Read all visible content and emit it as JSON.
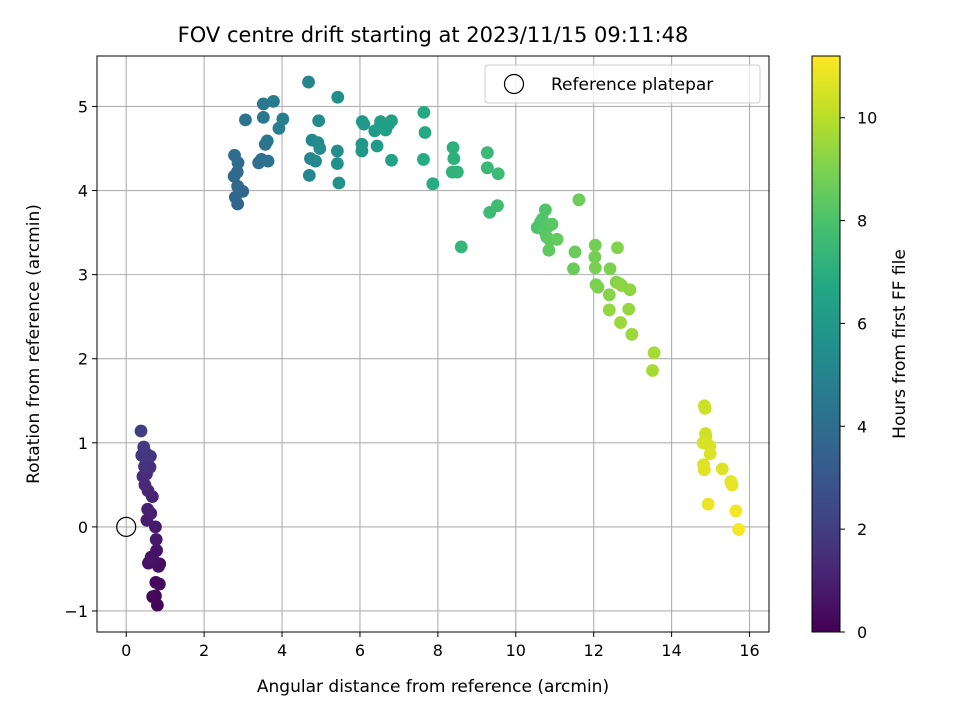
{
  "chart_data": {
    "type": "scatter",
    "title": "FOV centre drift starting at 2023/11/15 09:11:48",
    "xlabel": "Angular distance from reference (arcmin)",
    "ylabel": "Rotation from reference (arcmin)",
    "xlim": [
      -0.75,
      16.5
    ],
    "ylim": [
      -1.25,
      5.6
    ],
    "xticks": [
      0,
      2,
      4,
      6,
      8,
      10,
      12,
      14,
      16
    ],
    "yticks": [
      -1,
      0,
      1,
      2,
      3,
      4,
      5
    ],
    "xtick_labels": [
      "0",
      "2",
      "4",
      "6",
      "8",
      "10",
      "12",
      "14",
      "16"
    ],
    "ytick_labels": [
      "−1",
      "0",
      "1",
      "2",
      "3",
      "4",
      "5"
    ],
    "grid": true,
    "legend": {
      "location": "upper right",
      "entries": [
        "Reference platepar"
      ]
    },
    "reference_point": {
      "label": "Reference platepar",
      "x": 0,
      "y": 0
    },
    "colorbar": {
      "label": "Hours from first FF file",
      "colormap": "viridis",
      "range": [
        0,
        11.2
      ],
      "ticks": [
        0,
        2,
        4,
        6,
        8,
        10
      ],
      "tick_labels": [
        "0",
        "2",
        "4",
        "6",
        "8",
        "10"
      ]
    },
    "series": [
      {
        "points": [
          {
            "x": 0.8,
            "y": -0.93,
            "c": 0.1
          },
          {
            "x": 0.75,
            "y": -0.82,
            "c": 0.2
          },
          {
            "x": 0.68,
            "y": -0.83,
            "c": 0.2
          },
          {
            "x": 0.85,
            "y": -0.68,
            "c": 0.3
          },
          {
            "x": 0.76,
            "y": -0.66,
            "c": 0.3
          },
          {
            "x": 0.83,
            "y": -0.47,
            "c": 0.4
          },
          {
            "x": 0.86,
            "y": -0.44,
            "c": 0.4
          },
          {
            "x": 0.7,
            "y": -0.4,
            "c": 0.5
          },
          {
            "x": 0.57,
            "y": -0.43,
            "c": 0.5
          },
          {
            "x": 0.64,
            "y": -0.36,
            "c": 0.6
          },
          {
            "x": 0.78,
            "y": -0.28,
            "c": 0.6
          },
          {
            "x": 0.77,
            "y": -0.15,
            "c": 0.7
          },
          {
            "x": 0.75,
            "y": 0.0,
            "c": 0.8
          },
          {
            "x": 0.53,
            "y": 0.08,
            "c": 0.9
          },
          {
            "x": 0.63,
            "y": 0.16,
            "c": 1.0
          },
          {
            "x": 0.55,
            "y": 0.21,
            "c": 1.0
          },
          {
            "x": 0.67,
            "y": 0.36,
            "c": 1.1
          },
          {
            "x": 0.56,
            "y": 0.43,
            "c": 1.2
          },
          {
            "x": 0.48,
            "y": 0.5,
            "c": 1.3
          },
          {
            "x": 0.43,
            "y": 0.6,
            "c": 1.4
          },
          {
            "x": 0.52,
            "y": 0.63,
            "c": 1.4
          },
          {
            "x": 0.61,
            "y": 0.71,
            "c": 1.5
          },
          {
            "x": 0.47,
            "y": 0.72,
            "c": 1.6
          },
          {
            "x": 0.62,
            "y": 0.84,
            "c": 1.7
          },
          {
            "x": 0.4,
            "y": 0.85,
            "c": 1.8
          },
          {
            "x": 0.52,
            "y": 0.87,
            "c": 1.8
          },
          {
            "x": 0.45,
            "y": 0.95,
            "c": 1.9
          },
          {
            "x": 0.38,
            "y": 1.14,
            "c": 2.0
          },
          {
            "x": 2.86,
            "y": 3.84,
            "c": 3.6
          },
          {
            "x": 2.8,
            "y": 3.92,
            "c": 3.7
          },
          {
            "x": 2.99,
            "y": 3.99,
            "c": 3.7
          },
          {
            "x": 2.86,
            "y": 4.05,
            "c": 3.8
          },
          {
            "x": 2.77,
            "y": 4.17,
            "c": 3.8
          },
          {
            "x": 2.85,
            "y": 4.22,
            "c": 3.9
          },
          {
            "x": 2.87,
            "y": 4.33,
            "c": 3.9
          },
          {
            "x": 2.78,
            "y": 4.42,
            "c": 4.0
          },
          {
            "x": 3.4,
            "y": 4.33,
            "c": 4.1
          },
          {
            "x": 3.47,
            "y": 4.37,
            "c": 4.1
          },
          {
            "x": 3.64,
            "y": 4.35,
            "c": 4.2
          },
          {
            "x": 3.57,
            "y": 4.55,
            "c": 4.3
          },
          {
            "x": 3.62,
            "y": 4.59,
            "c": 4.3
          },
          {
            "x": 3.06,
            "y": 4.84,
            "c": 4.4
          },
          {
            "x": 3.52,
            "y": 4.87,
            "c": 4.5
          },
          {
            "x": 3.52,
            "y": 5.03,
            "c": 4.5
          },
          {
            "x": 3.78,
            "y": 5.06,
            "c": 4.6
          },
          {
            "x": 3.92,
            "y": 4.74,
            "c": 4.7
          },
          {
            "x": 4.02,
            "y": 4.85,
            "c": 4.7
          },
          {
            "x": 4.68,
            "y": 5.29,
            "c": 5.0
          },
          {
            "x": 4.7,
            "y": 4.18,
            "c": 5.1
          },
          {
            "x": 4.73,
            "y": 4.38,
            "c": 5.1
          },
          {
            "x": 4.86,
            "y": 4.35,
            "c": 5.2
          },
          {
            "x": 4.77,
            "y": 4.6,
            "c": 5.2
          },
          {
            "x": 4.94,
            "y": 4.83,
            "c": 5.3
          },
          {
            "x": 4.92,
            "y": 4.57,
            "c": 5.3
          },
          {
            "x": 4.97,
            "y": 4.5,
            "c": 5.4
          },
          {
            "x": 5.43,
            "y": 5.11,
            "c": 5.5
          },
          {
            "x": 5.42,
            "y": 4.47,
            "c": 5.5
          },
          {
            "x": 5.42,
            "y": 4.32,
            "c": 5.6
          },
          {
            "x": 5.46,
            "y": 4.09,
            "c": 5.6
          },
          {
            "x": 6.05,
            "y": 4.47,
            "c": 5.9
          },
          {
            "x": 6.05,
            "y": 4.55,
            "c": 5.9
          },
          {
            "x": 6.06,
            "y": 4.82,
            "c": 6.0
          },
          {
            "x": 6.1,
            "y": 4.79,
            "c": 6.0
          },
          {
            "x": 6.38,
            "y": 4.71,
            "c": 6.1
          },
          {
            "x": 6.44,
            "y": 4.53,
            "c": 6.1
          },
          {
            "x": 6.52,
            "y": 4.77,
            "c": 6.2
          },
          {
            "x": 6.53,
            "y": 4.82,
            "c": 6.2
          },
          {
            "x": 6.66,
            "y": 4.72,
            "c": 6.3
          },
          {
            "x": 6.74,
            "y": 4.79,
            "c": 6.3
          },
          {
            "x": 6.81,
            "y": 4.83,
            "c": 6.4
          },
          {
            "x": 6.81,
            "y": 4.36,
            "c": 6.4
          },
          {
            "x": 7.64,
            "y": 4.93,
            "c": 6.8
          },
          {
            "x": 7.67,
            "y": 4.69,
            "c": 6.8
          },
          {
            "x": 7.63,
            "y": 4.37,
            "c": 6.9
          },
          {
            "x": 7.87,
            "y": 4.08,
            "c": 6.9
          },
          {
            "x": 8.39,
            "y": 4.51,
            "c": 7.1
          },
          {
            "x": 8.41,
            "y": 4.38,
            "c": 7.1
          },
          {
            "x": 8.37,
            "y": 4.22,
            "c": 7.2
          },
          {
            "x": 8.5,
            "y": 4.22,
            "c": 7.2
          },
          {
            "x": 8.6,
            "y": 3.33,
            "c": 7.3
          },
          {
            "x": 9.27,
            "y": 4.45,
            "c": 7.5
          },
          {
            "x": 9.27,
            "y": 4.27,
            "c": 7.5
          },
          {
            "x": 9.55,
            "y": 4.2,
            "c": 7.6
          },
          {
            "x": 9.33,
            "y": 3.74,
            "c": 7.6
          },
          {
            "x": 9.53,
            "y": 3.82,
            "c": 7.7
          },
          {
            "x": 10.55,
            "y": 3.56,
            "c": 8.0
          },
          {
            "x": 10.63,
            "y": 3.62,
            "c": 8.0
          },
          {
            "x": 10.68,
            "y": 3.66,
            "c": 8.1
          },
          {
            "x": 10.76,
            "y": 3.77,
            "c": 8.1
          },
          {
            "x": 10.73,
            "y": 3.52,
            "c": 8.2
          },
          {
            "x": 10.82,
            "y": 3.57,
            "c": 8.2
          },
          {
            "x": 10.79,
            "y": 3.45,
            "c": 8.3
          },
          {
            "x": 10.93,
            "y": 3.6,
            "c": 8.3
          },
          {
            "x": 10.88,
            "y": 3.41,
            "c": 8.4
          },
          {
            "x": 10.85,
            "y": 3.29,
            "c": 8.4
          },
          {
            "x": 11.06,
            "y": 3.42,
            "c": 8.5
          },
          {
            "x": 11.48,
            "y": 3.07,
            "c": 8.6
          },
          {
            "x": 11.52,
            "y": 3.27,
            "c": 8.6
          },
          {
            "x": 11.62,
            "y": 3.89,
            "c": 8.7
          },
          {
            "x": 12.04,
            "y": 3.35,
            "c": 8.8
          },
          {
            "x": 12.03,
            "y": 3.21,
            "c": 8.8
          },
          {
            "x": 12.04,
            "y": 3.08,
            "c": 8.9
          },
          {
            "x": 12.06,
            "y": 2.88,
            "c": 8.9
          },
          {
            "x": 12.11,
            "y": 2.85,
            "c": 9.0
          },
          {
            "x": 12.42,
            "y": 3.07,
            "c": 9.0
          },
          {
            "x": 12.61,
            "y": 3.32,
            "c": 9.1
          },
          {
            "x": 12.58,
            "y": 2.91,
            "c": 9.1
          },
          {
            "x": 12.67,
            "y": 2.89,
            "c": 9.2
          },
          {
            "x": 12.4,
            "y": 2.76,
            "c": 9.2
          },
          {
            "x": 12.72,
            "y": 2.87,
            "c": 9.3
          },
          {
            "x": 12.93,
            "y": 2.82,
            "c": 9.3
          },
          {
            "x": 12.4,
            "y": 2.58,
            "c": 9.4
          },
          {
            "x": 12.9,
            "y": 2.59,
            "c": 9.4
          },
          {
            "x": 12.69,
            "y": 2.43,
            "c": 9.5
          },
          {
            "x": 12.98,
            "y": 2.29,
            "c": 9.5
          },
          {
            "x": 13.55,
            "y": 2.07,
            "c": 9.7
          },
          {
            "x": 13.51,
            "y": 1.86,
            "c": 9.7
          },
          {
            "x": 14.84,
            "y": 1.44,
            "c": 10.3
          },
          {
            "x": 14.86,
            "y": 1.41,
            "c": 10.3
          },
          {
            "x": 14.87,
            "y": 1.11,
            "c": 10.4
          },
          {
            "x": 14.88,
            "y": 1.07,
            "c": 10.4
          },
          {
            "x": 14.81,
            "y": 1.0,
            "c": 10.5
          },
          {
            "x": 14.98,
            "y": 0.96,
            "c": 10.5
          },
          {
            "x": 14.99,
            "y": 0.87,
            "c": 10.6
          },
          {
            "x": 14.82,
            "y": 0.74,
            "c": 10.6
          },
          {
            "x": 14.84,
            "y": 0.68,
            "c": 10.7
          },
          {
            "x": 15.3,
            "y": 0.69,
            "c": 10.7
          },
          {
            "x": 15.52,
            "y": 0.54,
            "c": 10.8
          },
          {
            "x": 15.55,
            "y": 0.5,
            "c": 10.8
          },
          {
            "x": 14.94,
            "y": 0.27,
            "c": 10.9
          },
          {
            "x": 15.65,
            "y": 0.19,
            "c": 11.0
          },
          {
            "x": 15.72,
            "y": -0.03,
            "c": 11.1
          }
        ]
      }
    ]
  }
}
